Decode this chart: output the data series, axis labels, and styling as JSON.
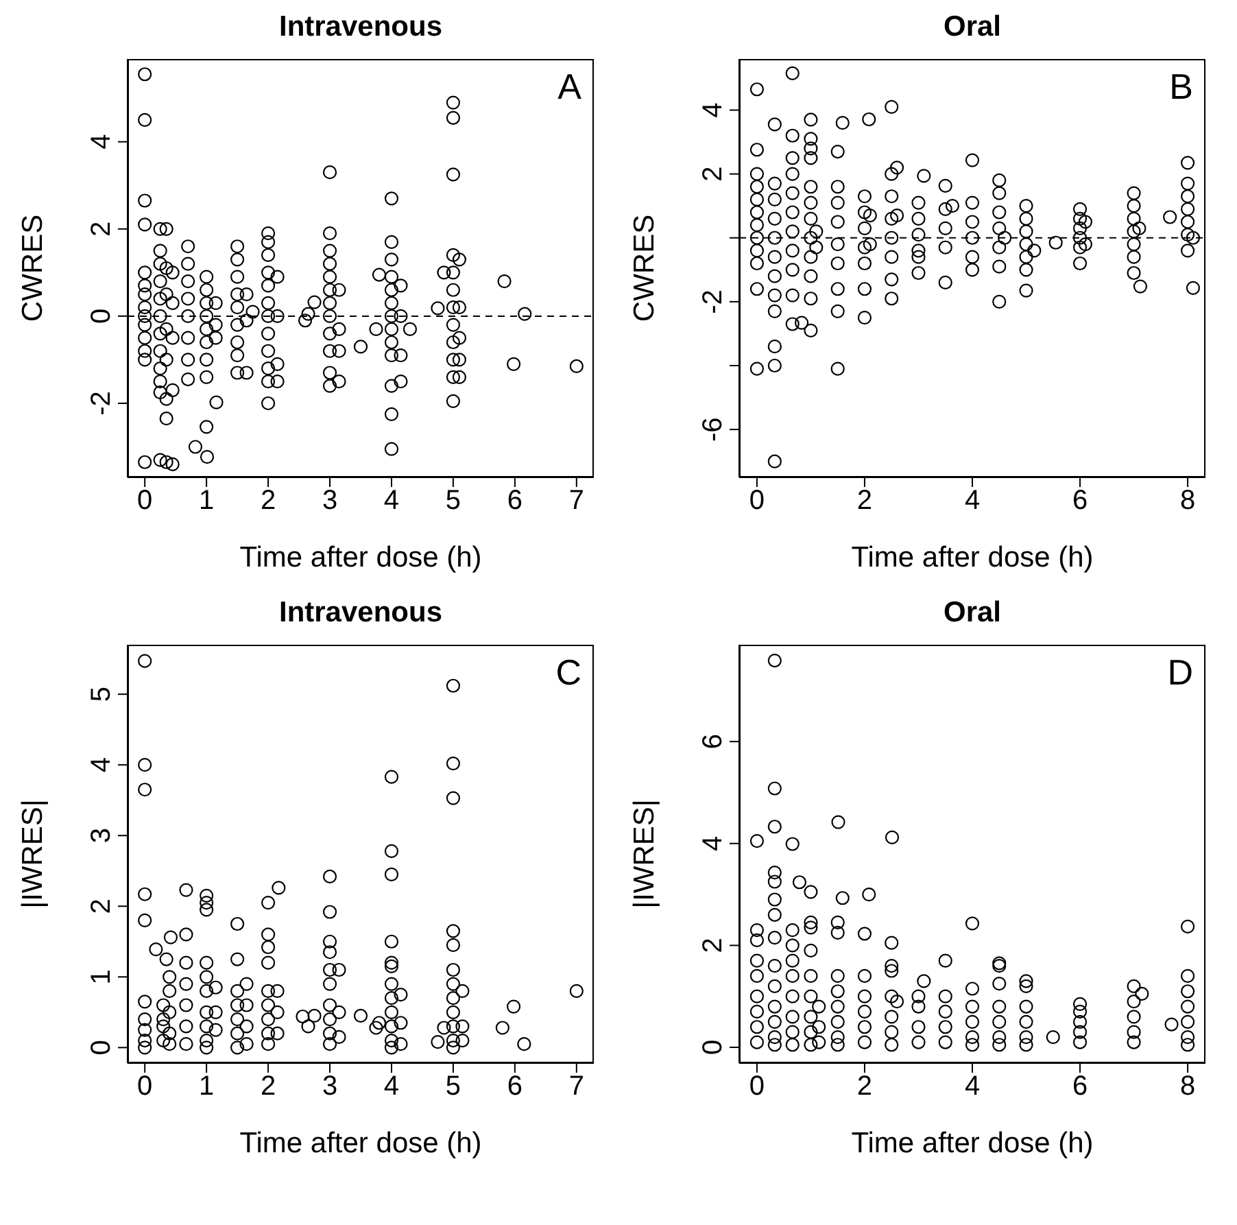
{
  "chart_data": [
    {
      "type": "scatter",
      "title": "Intravenous",
      "xlabel": "Time after dose (h)",
      "ylabel": "CWRES",
      "annotations": [
        "A"
      ],
      "xlim": [
        -0.28,
        7.28
      ],
      "xticks": [
        0,
        1,
        2,
        3,
        4,
        5,
        6,
        7
      ],
      "ylim": [
        -3.7,
        5.9
      ],
      "yticks": [
        -2,
        0,
        2,
        4
      ],
      "marker": "circle",
      "ref_lines": [
        {
          "axis": "y",
          "value": 0,
          "color": "#000000",
          "line_style": "dashed"
        }
      ],
      "series": [
        {
          "color": "#000000",
          "x": [
            0,
            0,
            0,
            0,
            0,
            0,
            0,
            0,
            0,
            0,
            0,
            0,
            0,
            0,
            0.25,
            0.25,
            0.25,
            0.25,
            0.25,
            0.25,
            0.25,
            0.25,
            0.25,
            0.25,
            0.25,
            0.25,
            0.35,
            0.35,
            0.35,
            0.35,
            0.35,
            0.35,
            0.35,
            0.35,
            0.45,
            0.45,
            0.45,
            0.45,
            0.45,
            0.7,
            0.7,
            0.7,
            0.7,
            0.7,
            0.7,
            0.7,
            0.7,
            0.82,
            1.01,
            1.16,
            1,
            1,
            1,
            1,
            1,
            1,
            1,
            1,
            1,
            1.15,
            1.15,
            1.15,
            1.5,
            1.5,
            1.5,
            1.5,
            1.5,
            1.5,
            1.5,
            1.5,
            1.5,
            1.65,
            1.65,
            1.65,
            1.75,
            2,
            2,
            2,
            2,
            2,
            2,
            2,
            2,
            2,
            2,
            2,
            2,
            2.15,
            2.15,
            2.15,
            2.15,
            2.6,
            2.65,
            2.75,
            3,
            3,
            3,
            3,
            3,
            3,
            3,
            3,
            3,
            3,
            3,
            3,
            3.15,
            3.15,
            3.15,
            3.15,
            3.5,
            3.75,
            3.8,
            4,
            4,
            4,
            4,
            4,
            4,
            4,
            4,
            4,
            4,
            4,
            4,
            4,
            4.15,
            4.15,
            4.15,
            4.15,
            4.3,
            4.75,
            4.85,
            5,
            5,
            5,
            5,
            5,
            5,
            5,
            5,
            5,
            5,
            5,
            5,
            5.1,
            5.1,
            5.1,
            5.1,
            5.1,
            5.83,
            5.98,
            6.16,
            7
          ],
          "values": [
            5.55,
            4.5,
            2.65,
            2.1,
            1,
            0.7,
            0.5,
            0.2,
            0,
            -0.2,
            -0.5,
            -0.8,
            -1,
            -3.35,
            2,
            1.5,
            1.2,
            0.8,
            0.4,
            0,
            -0.4,
            -0.8,
            -1.2,
            -1.5,
            -1.75,
            -3.3,
            2,
            1.1,
            0.5,
            -0.3,
            -1,
            -1.9,
            -2.35,
            -3.35,
            1,
            0.3,
            -0.5,
            -1.7,
            -3.4,
            1.6,
            1.2,
            0.8,
            0.4,
            0,
            -0.5,
            -1,
            -1.45,
            -3,
            -3.23,
            -1.98,
            0.9,
            0.6,
            0.3,
            0,
            -0.3,
            -0.6,
            -1,
            -1.4,
            -2.54,
            0.3,
            -0.2,
            -0.5,
            1.6,
            1.3,
            0.9,
            0.5,
            0.2,
            -0.2,
            -0.6,
            -0.9,
            -1.3,
            0.5,
            -0.1,
            -1.3,
            0.1,
            1.9,
            1.7,
            1.4,
            1,
            0.7,
            0.3,
            0,
            -0.4,
            -0.8,
            -1.2,
            -1.5,
            -2,
            0.9,
            0,
            -1.1,
            -1.5,
            -0.1,
            0.05,
            0.32,
            3.3,
            1.9,
            1.5,
            1.2,
            0.9,
            0.6,
            0.3,
            0,
            -0.4,
            -0.8,
            -1.3,
            -1.6,
            0.6,
            -0.3,
            -0.8,
            -1.5,
            -0.7,
            -0.3,
            0.95,
            2.7,
            1.7,
            1.3,
            0.9,
            0.6,
            0.3,
            0,
            -0.3,
            -0.6,
            -0.9,
            -1.6,
            -2.25,
            -3.05,
            0.7,
            0,
            -0.9,
            -1.5,
            -0.3,
            0.18,
            1,
            4.9,
            4.55,
            3.25,
            1.4,
            1,
            0.6,
            0.2,
            -0.2,
            -0.6,
            -1,
            -1.4,
            -1.95,
            1.3,
            0.2,
            -0.5,
            -1,
            -1.4,
            0.8,
            -1.1,
            0.05,
            -1.15
          ]
        }
      ]
    },
    {
      "type": "scatter",
      "title": "Oral",
      "xlabel": "Time after dose (h)",
      "ylabel": "CWRES",
      "annotations": [
        "B"
      ],
      "xlim": [
        -0.33,
        8.33
      ],
      "xticks": [
        0,
        2,
        4,
        6,
        8
      ],
      "ylim": [
        -7.5,
        5.6
      ],
      "yticks": [
        {
          "value": -6,
          "label": "-6"
        },
        {
          "value": -4,
          "label": null
        },
        {
          "value": -2,
          "label": "-2"
        },
        {
          "value": 0,
          "label": null
        },
        {
          "value": 2,
          "label": "2"
        },
        {
          "value": 4,
          "label": "4"
        }
      ],
      "marker": "circle",
      "ref_lines": [
        {
          "axis": "y",
          "value": 0,
          "color": "#000000",
          "line_style": "dashed"
        }
      ],
      "series": [
        {
          "color": "#000000",
          "x": [
            0,
            0,
            0,
            0,
            0,
            0,
            0,
            0,
            0,
            0,
            0,
            0,
            0.33,
            0.33,
            0.33,
            0.33,
            0.33,
            0.33,
            0.33,
            0.33,
            0.33,
            0.33,
            0.33,
            0.33,
            0.66,
            0.66,
            0.66,
            0.66,
            0.66,
            0.66,
            0.66,
            0.66,
            0.66,
            0.66,
            0.66,
            0.83,
            1,
            1,
            1,
            1,
            1,
            1,
            1,
            1,
            1,
            1,
            1,
            1,
            1.1,
            1.1,
            1.5,
            1.5,
            1.5,
            1.5,
            1.5,
            1.5,
            1.5,
            1.5,
            1.5,
            1.59,
            2,
            2,
            2,
            2,
            2,
            2,
            2,
            2.08,
            2.1,
            2.1,
            2.5,
            2.5,
            2.5,
            2.5,
            2.5,
            2.5,
            2.5,
            2.5,
            2.6,
            2.6,
            3,
            3,
            3,
            3,
            3,
            3,
            3.1,
            3.5,
            3.5,
            3.5,
            3.5,
            3.5,
            3.63,
            4,
            4,
            4,
            4,
            4,
            4,
            4.5,
            4.5,
            4.5,
            4.5,
            4.5,
            4.5,
            4.5,
            4.6,
            5,
            5,
            5,
            5,
            5,
            5,
            5,
            5.15,
            5.55,
            6,
            6,
            6,
            6,
            6,
            6,
            6.1,
            6.1,
            7,
            7,
            7,
            7,
            7,
            7,
            7,
            7.12,
            7.1,
            7.67,
            8,
            8,
            8,
            8,
            8,
            8,
            8,
            8.1,
            8.1
          ],
          "values": [
            4.65,
            2.76,
            2,
            1.6,
            1.2,
            0.8,
            0.4,
            0,
            -0.4,
            -0.8,
            -1.6,
            -4.1,
            3.55,
            1.7,
            1.2,
            0.6,
            0,
            -0.6,
            -1.2,
            -1.8,
            -2.3,
            -3.4,
            -4,
            -7,
            5.15,
            3.2,
            2.5,
            2,
            1.4,
            0.8,
            0.2,
            -0.4,
            -1,
            -1.8,
            -2.7,
            -2.66,
            3.7,
            3.1,
            2.8,
            2.5,
            1.6,
            1.1,
            0.6,
            0,
            -0.6,
            -1.2,
            -1.9,
            -2.9,
            0.2,
            -0.3,
            2.7,
            1.6,
            1.1,
            0.5,
            -0.2,
            -0.8,
            -1.6,
            -2.3,
            -4.1,
            3.6,
            1.3,
            0.8,
            0.3,
            -0.3,
            -0.8,
            -1.6,
            -2.5,
            3.71,
            0.7,
            -0.2,
            4.1,
            2,
            1.3,
            0.6,
            0,
            -0.6,
            -1.3,
            -1.9,
            2.2,
            0.7,
            1.1,
            0.6,
            0.1,
            -0.4,
            -1.1,
            -0.6,
            1.94,
            1.63,
            0.9,
            0.3,
            -0.3,
            -1.4,
            1,
            2.43,
            1.1,
            0.5,
            0,
            -0.6,
            -1,
            1.8,
            1.4,
            0.8,
            0.3,
            -0.3,
            -0.9,
            -2,
            0,
            1,
            0.6,
            0.2,
            -0.2,
            -0.6,
            -1,
            -1.65,
            -0.4,
            -0.15,
            0.9,
            0.6,
            0.3,
            0,
            -0.3,
            -0.8,
            0.5,
            -0.2,
            1.4,
            1,
            0.6,
            0.2,
            -0.2,
            -0.6,
            -1.1,
            -1.52,
            0.3,
            0.65,
            2.35,
            1.7,
            1.3,
            0.9,
            0.5,
            0.1,
            -0.4,
            -1.57,
            0
          ]
        }
      ]
    },
    {
      "type": "scatter",
      "title": "Intravenous",
      "xlabel": "Time after dose (h)",
      "ylabel": "|IWRES|",
      "annotations": [
        "C"
      ],
      "xlim": [
        -0.28,
        7.28
      ],
      "xticks": [
        0,
        1,
        2,
        3,
        4,
        5,
        6,
        7
      ],
      "ylim": [
        -0.22,
        5.7
      ],
      "yticks": [
        0,
        1,
        2,
        3,
        4,
        5
      ],
      "marker": "circle",
      "series": [
        {
          "color": "#000000",
          "x": [
            0,
            0,
            0,
            0,
            0,
            0,
            0,
            0,
            0,
            0,
            0.18,
            0.3,
            0.3,
            0.3,
            0.3,
            0.35,
            0.4,
            0.4,
            0.4,
            0.4,
            0.4,
            0.42,
            0.67,
            0.67,
            0.67,
            0.67,
            0.67,
            0.67,
            0.67,
            1,
            1,
            1,
            1,
            1,
            1,
            1,
            1,
            1,
            1,
            1.15,
            1.15,
            1.15,
            1.5,
            1.5,
            1.5,
            1.5,
            1.5,
            1.5,
            1.5,
            1.65,
            1.65,
            1.65,
            1.65,
            2,
            2,
            2,
            2,
            2,
            2,
            2,
            2,
            2,
            2.17,
            2.15,
            2.15,
            2.15,
            2.56,
            2.65,
            2.75,
            3,
            3,
            3,
            3,
            3,
            3,
            3,
            3,
            3,
            3,
            3.15,
            3.15,
            3.15,
            3.5,
            3.75,
            3.8,
            4,
            4,
            4,
            4,
            4,
            4,
            4,
            4,
            4,
            4,
            4,
            4,
            4.15,
            4.15,
            4.15,
            4.75,
            4.85,
            5,
            5,
            5,
            5,
            5,
            5,
            5,
            5,
            5,
            5,
            5,
            5,
            5.15,
            5.15,
            5.15,
            5.8,
            5.98,
            6.15,
            7
          ],
          "values": [
            5.47,
            4,
            3.65,
            2.17,
            1.8,
            0.65,
            0.4,
            0.25,
            0.1,
            0,
            1.39,
            0.6,
            0.3,
            0.1,
            0.4,
            1.25,
            1,
            0.8,
            0.5,
            0.2,
            0.05,
            1.56,
            2.23,
            1.6,
            1.2,
            0.9,
            0.6,
            0.3,
            0.05,
            2.15,
            2.05,
            1.95,
            1.2,
            1,
            0.8,
            0.5,
            0.3,
            0.1,
            0,
            0.85,
            0.5,
            0.25,
            1.75,
            1.25,
            0.8,
            0.6,
            0.4,
            0.2,
            0,
            0.9,
            0.6,
            0.3,
            0.05,
            2.05,
            1.6,
            1.42,
            1.2,
            0.8,
            0.6,
            0.4,
            0.2,
            0.05,
            2.26,
            0.8,
            0.5,
            0.2,
            0.44,
            0.3,
            0.45,
            2.42,
            1.92,
            1.5,
            1.35,
            1.1,
            0.9,
            0.6,
            0.4,
            0.2,
            0.05,
            1.1,
            0.5,
            0.15,
            0.45,
            0.28,
            0.35,
            3.83,
            2.78,
            2.45,
            1.5,
            1.2,
            1.15,
            0.9,
            0.7,
            0.5,
            0.3,
            0.1,
            0,
            0.75,
            0.35,
            0.05,
            0.08,
            0.28,
            5.12,
            4.02,
            3.53,
            1.65,
            1.45,
            1.1,
            0.9,
            0.7,
            0.5,
            0.3,
            0.1,
            0,
            0.8,
            0.3,
            0.1,
            0.28,
            0.58,
            0.05,
            0.8
          ]
        }
      ]
    },
    {
      "type": "scatter",
      "title": "Oral",
      "xlabel": "Time after dose (h)",
      "ylabel": "|IWRES|",
      "annotations": [
        "D"
      ],
      "xlim": [
        -0.33,
        8.33
      ],
      "xticks": [
        0,
        2,
        4,
        6,
        8
      ],
      "ylim": [
        -0.31,
        7.9
      ],
      "yticks": [
        0,
        2,
        4,
        6
      ],
      "marker": "circle",
      "series": [
        {
          "color": "#000000",
          "x": [
            0,
            0,
            0,
            0,
            0,
            0,
            0,
            0,
            0,
            0.33,
            0.33,
            0.33,
            0.33,
            0.33,
            0.33,
            0.33,
            0.33,
            0.33,
            0.33,
            0.33,
            0.33,
            0.33,
            0.33,
            0.66,
            0.66,
            0.66,
            0.66,
            0.66,
            0.66,
            0.66,
            0.66,
            0.66,
            0.79,
            1,
            1,
            1,
            1,
            1,
            1,
            1,
            1,
            1,
            1.15,
            1.15,
            1.15,
            1.51,
            1.5,
            1.5,
            1.5,
            1.5,
            1.5,
            1.5,
            1.5,
            1.5,
            1.59,
            2.08,
            2,
            2,
            2,
            2,
            2,
            2,
            2.51,
            2.5,
            2.5,
            2.5,
            2.5,
            2.5,
            2.5,
            2.5,
            2.6,
            3.1,
            3,
            3,
            3,
            3,
            3.5,
            3.5,
            3.5,
            3.5,
            3.5,
            4,
            4,
            4,
            4,
            4,
            4,
            4.5,
            4.5,
            4.5,
            4.5,
            4.5,
            4.5,
            4.5,
            5,
            5,
            5,
            5,
            5,
            5,
            5.5,
            6,
            6,
            6,
            6,
            6,
            7,
            7,
            7,
            7,
            7,
            7.15,
            7.7,
            8,
            8,
            8,
            8,
            8,
            8,
            8
          ],
          "values": [
            4.05,
            2.3,
            2.1,
            1.7,
            1.4,
            1,
            0.7,
            0.4,
            0.1,
            7.59,
            5.08,
            4.33,
            3.43,
            3.25,
            2.9,
            2.6,
            2.15,
            1.6,
            1.2,
            0.8,
            0.5,
            0.2,
            0.05,
            3.99,
            2.3,
            2,
            1.7,
            1.4,
            1,
            0.6,
            0.3,
            0.05,
            3.24,
            3.05,
            2.45,
            2.35,
            1.9,
            1.4,
            1,
            0.6,
            0.3,
            0.05,
            0.8,
            0.4,
            0.1,
            4.42,
            2.45,
            2.25,
            1.4,
            1.1,
            0.8,
            0.5,
            0.2,
            0.05,
            2.93,
            3,
            2.23,
            1.4,
            1,
            0.7,
            0.4,
            0.1,
            4.12,
            2.05,
            1.6,
            1.5,
            1,
            0.6,
            0.3,
            0.05,
            0.9,
            1.3,
            1,
            0.8,
            0.4,
            0.1,
            1.7,
            1,
            0.7,
            0.4,
            0.1,
            2.43,
            1.15,
            0.8,
            0.5,
            0.2,
            0.05,
            1.65,
            1.6,
            1.25,
            0.8,
            0.5,
            0.2,
            0.05,
            1.3,
            1.2,
            0.8,
            0.5,
            0.2,
            0.05,
            0.2,
            0.85,
            0.7,
            0.5,
            0.3,
            0.1,
            1.2,
            0.9,
            0.6,
            0.3,
            0.1,
            1.05,
            0.45,
            2.37,
            1.4,
            1.1,
            0.8,
            0.5,
            0.2,
            0.05
          ]
        }
      ]
    }
  ]
}
